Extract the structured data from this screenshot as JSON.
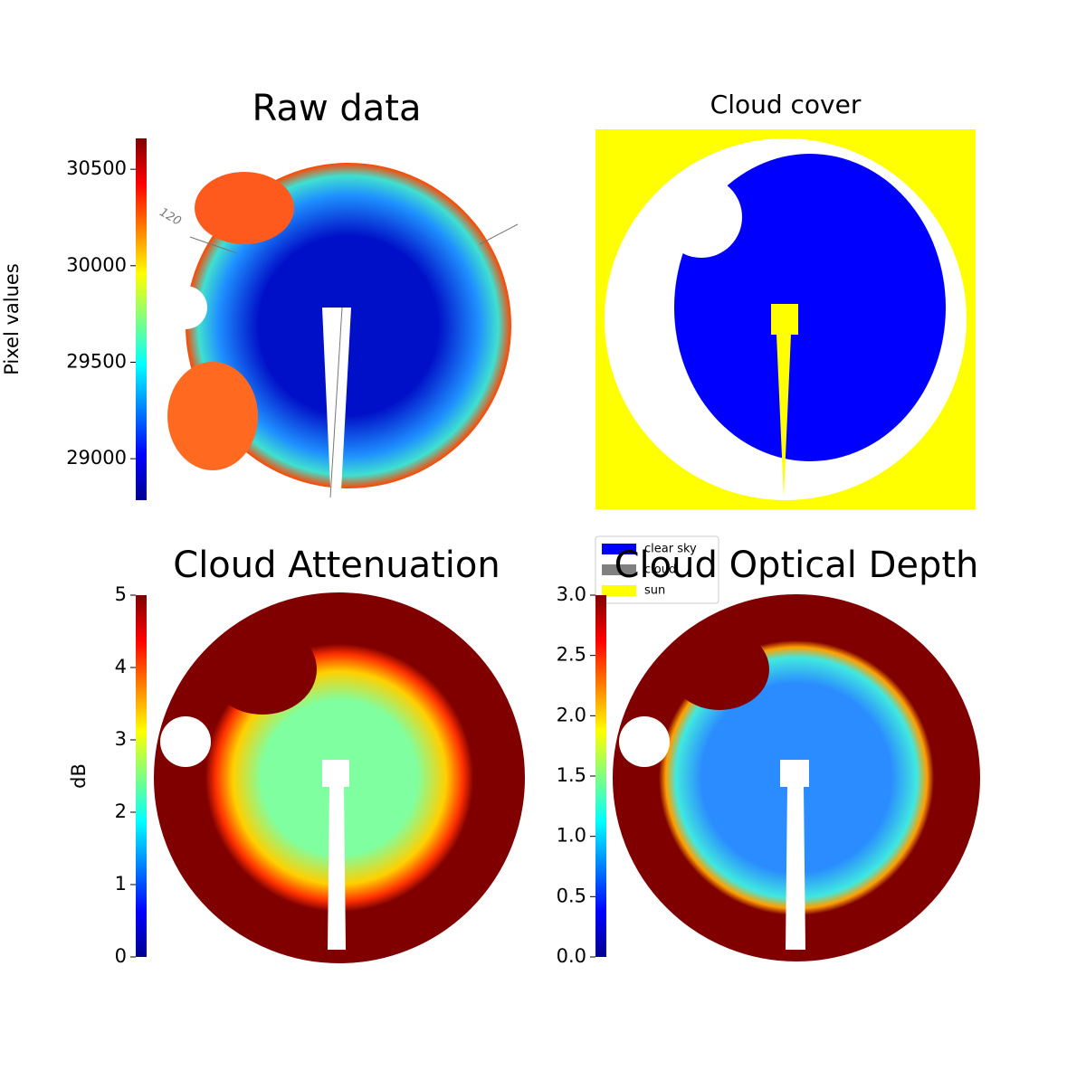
{
  "chart_data": [
    {
      "type": "image",
      "title": "Raw data",
      "colormap": "jet",
      "annotation": "120",
      "colorbar": {
        "label": "Pixel values",
        "lim": [
          28785,
          30660
        ],
        "ticks": [
          29000,
          29500,
          30000,
          30500
        ]
      }
    },
    {
      "type": "image",
      "title": "Cloud cover",
      "legend": [
        {
          "name": "clear sky",
          "color": "#0000ff"
        },
        {
          "name": "cloud",
          "color": "#808080"
        },
        {
          "name": "sun",
          "color": "#ffff00"
        }
      ]
    },
    {
      "type": "image",
      "title": "Cloud Attenuation",
      "colormap": "jet",
      "colorbar": {
        "label": "dB",
        "lim": [
          0,
          5
        ],
        "ticks": [
          0,
          1,
          2,
          3,
          4,
          5
        ]
      }
    },
    {
      "type": "image",
      "title": "Cloud Optical Depth",
      "colormap": "jet",
      "colorbar": {
        "lim": [
          0,
          3
        ],
        "ticks": [
          {
            "value": 0,
            "label": "0.0"
          },
          0.5,
          {
            "value": 1,
            "label": "1.0"
          },
          1.5,
          {
            "value": 2,
            "label": "2.0"
          },
          2.5,
          {
            "value": 3,
            "label": "3.0"
          }
        ]
      }
    }
  ]
}
